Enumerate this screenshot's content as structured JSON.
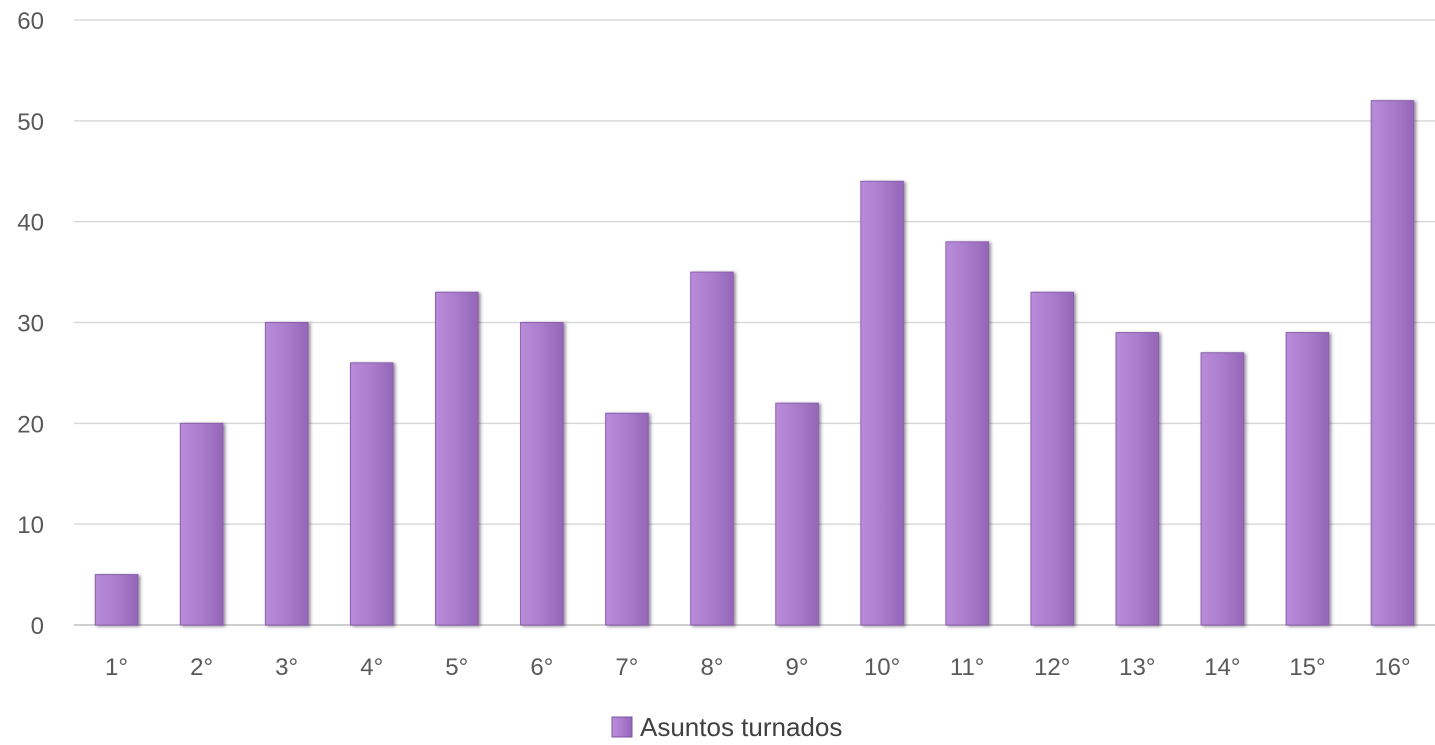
{
  "chart_data": {
    "type": "bar",
    "categories": [
      "1°",
      "2°",
      "3°",
      "4°",
      "5°",
      "6°",
      "7°",
      "8°",
      "9°",
      "10°",
      "11°",
      "12°",
      "13°",
      "14°",
      "15°",
      "16°"
    ],
    "series": [
      {
        "name": "Asuntos turnados",
        "values": [
          5,
          20,
          30,
          26,
          33,
          30,
          21,
          35,
          22,
          44,
          38,
          33,
          29,
          27,
          29,
          52
        ],
        "color": "#a879cc"
      }
    ],
    "ylim": [
      0,
      60
    ],
    "yticks": [
      0,
      10,
      20,
      30,
      40,
      50,
      60
    ],
    "grid": true,
    "legend_position": "bottom-center"
  }
}
